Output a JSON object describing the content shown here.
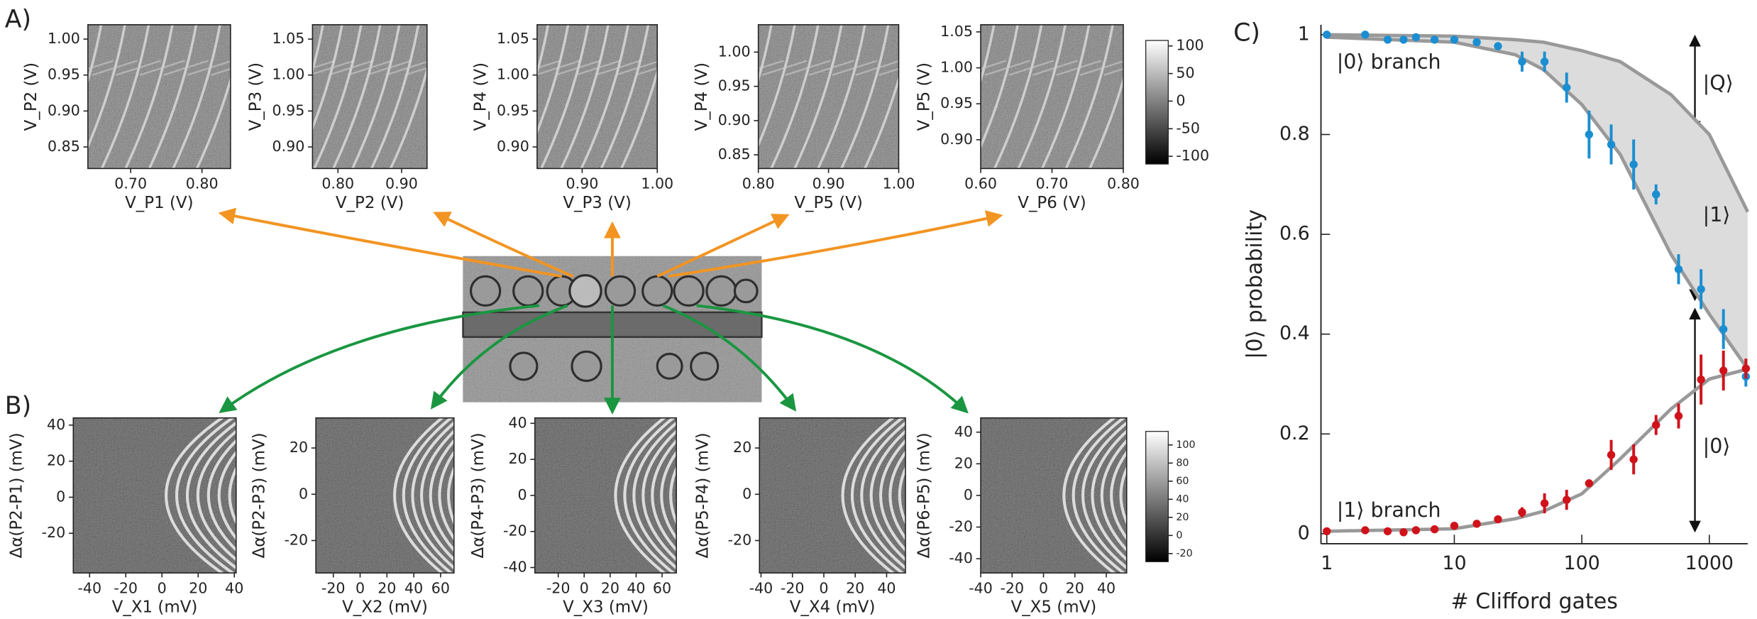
{
  "panel_labels": [
    "A)",
    "B)",
    "C)"
  ],
  "chart_data": [
    {
      "type": "heatmap",
      "xlabel": "V_P1 (V)",
      "ylabel": "V_P2 (V)",
      "xlim": [
        0.64,
        0.84
      ],
      "ylim": [
        0.82,
        1.02
      ],
      "xticks": [
        {
          "value": 0.7,
          "label": "0.70"
        },
        {
          "value": 0.8,
          "label": "0.80"
        }
      ],
      "yticks": [
        {
          "value": 1,
          "label": "1.00"
        },
        0.95,
        {
          "value": 0.9,
          "label": "0.90"
        },
        0.85
      ]
    },
    {
      "type": "heatmap",
      "xlabel": "V_P2 (V)",
      "ylabel": "V_P3 (V)",
      "xlim": [
        0.76,
        0.94
      ],
      "ylim": [
        0.87,
        1.07
      ],
      "xticks": [
        {
          "value": 0.8,
          "label": "0.80"
        },
        {
          "value": 0.9,
          "label": "0.90"
        }
      ],
      "yticks": [
        1.05,
        {
          "value": 1,
          "label": "1.00"
        },
        0.95,
        {
          "value": 0.9,
          "label": "0.90"
        }
      ]
    },
    {
      "type": "heatmap",
      "xlabel": "V_P3 (V)",
      "ylabel": "V_P4 (V)",
      "xlim": [
        0.84,
        1.0
      ],
      "ylim": [
        0.87,
        1.07
      ],
      "xticks": [
        {
          "value": 0.9,
          "label": "0.90"
        },
        {
          "value": 1,
          "label": "1.00"
        }
      ],
      "yticks": [
        1.05,
        {
          "value": 1,
          "label": "1.00"
        },
        0.95,
        {
          "value": 0.9,
          "label": "0.90"
        }
      ]
    },
    {
      "type": "heatmap",
      "xlabel": "V_P5 (V)",
      "ylabel": "V_P4 (V)",
      "xlim": [
        0.8,
        1.0
      ],
      "ylim": [
        0.83,
        1.04
      ],
      "xticks": [
        {
          "value": 0.8,
          "label": "0.80"
        },
        {
          "value": 0.9,
          "label": "0.90"
        },
        {
          "value": 1,
          "label": "1.00"
        }
      ],
      "yticks": [
        {
          "value": 1,
          "label": "1.00"
        },
        0.95,
        {
          "value": 0.9,
          "label": "0.90"
        },
        0.85
      ]
    },
    {
      "type": "heatmap",
      "xlabel": "V_P6 (V)",
      "ylabel": "V_P5 (V)",
      "xlim": [
        0.6,
        0.8
      ],
      "ylim": [
        0.86,
        1.06
      ],
      "xticks": [
        {
          "value": 0.6,
          "label": "0.60"
        },
        {
          "value": 0.7,
          "label": "0.70"
        },
        {
          "value": 0.8,
          "label": "0.80"
        }
      ],
      "yticks": [
        1.05,
        {
          "value": 1,
          "label": "1.00"
        },
        0.95,
        {
          "value": 0.9,
          "label": "0.90"
        }
      ]
    },
    {
      "type": "colorbar",
      "ylim": [
        -114,
        110
      ],
      "yticks": [
        100,
        50,
        0,
        -50,
        -100
      ]
    },
    {
      "type": "heatmap",
      "xlabel": "V_X1 (mV)",
      "ylabel": "Δα(P2-P1) (mV)",
      "xlim": [
        -49,
        41
      ],
      "ylim": [
        -42,
        44
      ],
      "xticks": [
        -40,
        -20,
        0,
        20,
        40
      ],
      "yticks": [
        40,
        20,
        0,
        -20
      ]
    },
    {
      "type": "heatmap",
      "xlabel": "V_X2 (mV)",
      "ylabel": "Δα(P2-P3) (mV)",
      "xlim": [
        -33,
        70
      ],
      "ylim": [
        -34,
        33
      ],
      "xticks": [
        -20,
        0,
        20,
        40,
        60
      ],
      "yticks": [
        20,
        0,
        -20
      ]
    },
    {
      "type": "heatmap",
      "xlabel": "V_X3 (mV)",
      "ylabel": "Δα(P4-P3) (mV)",
      "xlim": [
        -38,
        71
      ],
      "ylim": [
        -43,
        43
      ],
      "xticks": [
        -20,
        0,
        20,
        40,
        60
      ],
      "yticks": [
        40,
        20,
        0,
        -20,
        -40
      ]
    },
    {
      "type": "heatmap",
      "xlabel": "V_X4 (mV)",
      "ylabel": "Δα(P5-P4) (mV)",
      "xlim": [
        -41,
        52
      ],
      "ylim": [
        -34,
        33
      ],
      "xticks": [
        -40,
        -20,
        0,
        20,
        40
      ],
      "yticks": [
        20,
        0,
        -20
      ]
    },
    {
      "type": "heatmap",
      "xlabel": "V_X5 (mV)",
      "ylabel": "Δα(P6-P5) (mV)",
      "xlim": [
        -40,
        53
      ],
      "ylim": [
        -49,
        49
      ],
      "xticks": [
        -40,
        -20,
        0,
        20,
        40
      ],
      "yticks": [
        40,
        20,
        0,
        -20,
        -40
      ]
    },
    {
      "type": "colorbar",
      "ylim": [
        -29,
        115
      ],
      "yticks": [
        100,
        80,
        60,
        40,
        20,
        0,
        -20
      ]
    },
    {
      "type": "line",
      "xscale": "log",
      "xlabel": "# Clifford gates",
      "ylabel": "|0⟩ probability",
      "xlim": [
        0.9,
        2000
      ],
      "ylim": [
        -0.02,
        1.02
      ],
      "xticks": [
        1,
        10,
        100,
        1000
      ],
      "yticks": [
        0,
        0.2,
        0.4,
        0.6,
        0.8,
        1
      ],
      "x": [
        1,
        2,
        3,
        4,
        5,
        7,
        10,
        15,
        22,
        34,
        51,
        76,
        114,
        170,
        255,
        382,
        574,
        861,
        1290,
        1935
      ],
      "series": [
        {
          "name": "|0⟩ branch",
          "color": "#1b8ed1",
          "values": [
            1.0,
            1.0,
            0.99,
            0.99,
            0.995,
            0.99,
            0.99,
            0.985,
            0.977,
            0.946,
            0.946,
            0.894,
            0.8,
            0.78,
            0.74,
            0.68,
            0.53,
            0.49,
            0.41,
            0.315
          ],
          "errors": [
            0.004,
            0.004,
            0.005,
            0.005,
            0.005,
            0.005,
            0.006,
            0.006,
            0.008,
            0.02,
            0.02,
            0.03,
            0.048,
            0.04,
            0.05,
            0.02,
            0.03,
            0.04,
            0.04,
            0.02
          ]
        },
        {
          "name": "|1⟩ branch",
          "color": "#d0121b",
          "values": [
            0.005,
            0.007,
            0.005,
            0.003,
            0.007,
            0.009,
            0.016,
            0.02,
            0.029,
            0.043,
            0.061,
            0.068,
            0.101,
            0.158,
            0.149,
            0.218,
            0.236,
            0.309,
            0.327,
            0.331
          ],
          "errors": [
            0.004,
            0.004,
            0.004,
            0.004,
            0.004,
            0.004,
            0.005,
            0.005,
            0.006,
            0.01,
            0.02,
            0.02,
            0.008,
            0.03,
            0.03,
            0.02,
            0.025,
            0.05,
            0.04,
            0.02
          ]
        }
      ],
      "fits": [
        {
          "color": "#999999",
          "x": [
            1,
            10,
            30,
            50,
            100,
            200,
            500,
            1000,
            2000
          ],
          "values": [
            1.0,
            0.997,
            0.99,
            0.985,
            0.968,
            0.946,
            0.88,
            0.8,
            0.645
          ]
        },
        {
          "color": "#999999",
          "x": [
            1,
            10,
            30,
            50,
            100,
            200,
            500,
            1000,
            2000
          ],
          "values": [
            0.995,
            0.985,
            0.96,
            0.93,
            0.86,
            0.76,
            0.56,
            0.44,
            0.33
          ]
        },
        {
          "color": "#999999",
          "x": [
            1,
            10,
            30,
            50,
            100,
            200,
            500,
            1000,
            2000
          ],
          "values": [
            0.005,
            0.01,
            0.03,
            0.045,
            0.08,
            0.15,
            0.25,
            0.31,
            0.33
          ]
        }
      ],
      "band_color": "#dcdcdc",
      "annotations": [
        "|Q⟩",
        "|1⟩",
        "|0⟩"
      ]
    }
  ]
}
